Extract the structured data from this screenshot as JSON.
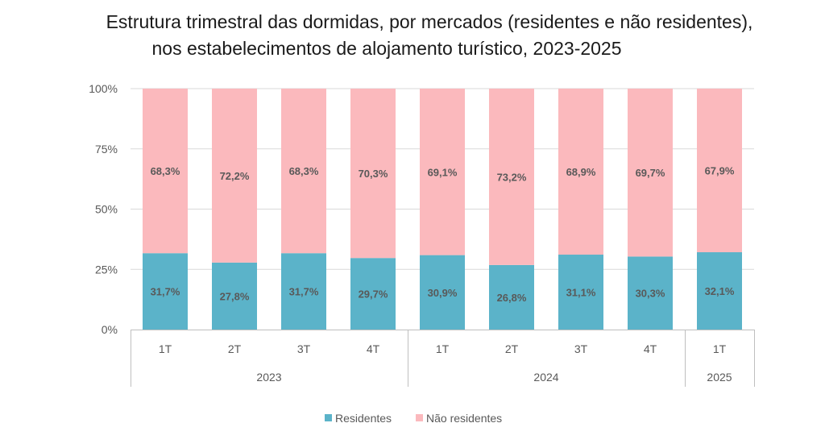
{
  "chart_data": {
    "type": "bar",
    "stacked": true,
    "title_lines": [
      "Estrutura trimestral das dormidas, por mercados (residentes e não residentes),",
      "nos estabelecimentos de alojamento turístico, 2023-2025"
    ],
    "categories": [
      "1T",
      "2T",
      "3T",
      "4T",
      "1T",
      "2T",
      "3T",
      "4T",
      "1T"
    ],
    "groups": [
      {
        "label": "2023",
        "count": 4
      },
      {
        "label": "2024",
        "count": 4
      },
      {
        "label": "2025",
        "count": 1
      }
    ],
    "series": [
      {
        "name": "Residentes",
        "color": "#5bb3c9",
        "values": [
          31.7,
          27.8,
          31.7,
          29.7,
          30.9,
          26.8,
          31.1,
          30.3,
          32.1
        ],
        "labels": [
          "31,7%",
          "27,8%",
          "31,7%",
          "29,7%",
          "30,9%",
          "26,8%",
          "31,1%",
          "30,3%",
          "32,1%"
        ]
      },
      {
        "name": "Não residentes",
        "color": "#fbb9bd",
        "values": [
          68.3,
          72.2,
          68.3,
          70.3,
          69.1,
          73.2,
          68.9,
          69.7,
          67.9
        ],
        "labels": [
          "68,3%",
          "72,2%",
          "68,3%",
          "70,3%",
          "69,1%",
          "73,2%",
          "68,9%",
          "69,7%",
          "67,9%"
        ]
      }
    ],
    "yticks": [
      "0%",
      "25%",
      "50%",
      "75%",
      "100%"
    ],
    "ylim": [
      0,
      100
    ],
    "grid": true,
    "legend_position": "bottom"
  }
}
